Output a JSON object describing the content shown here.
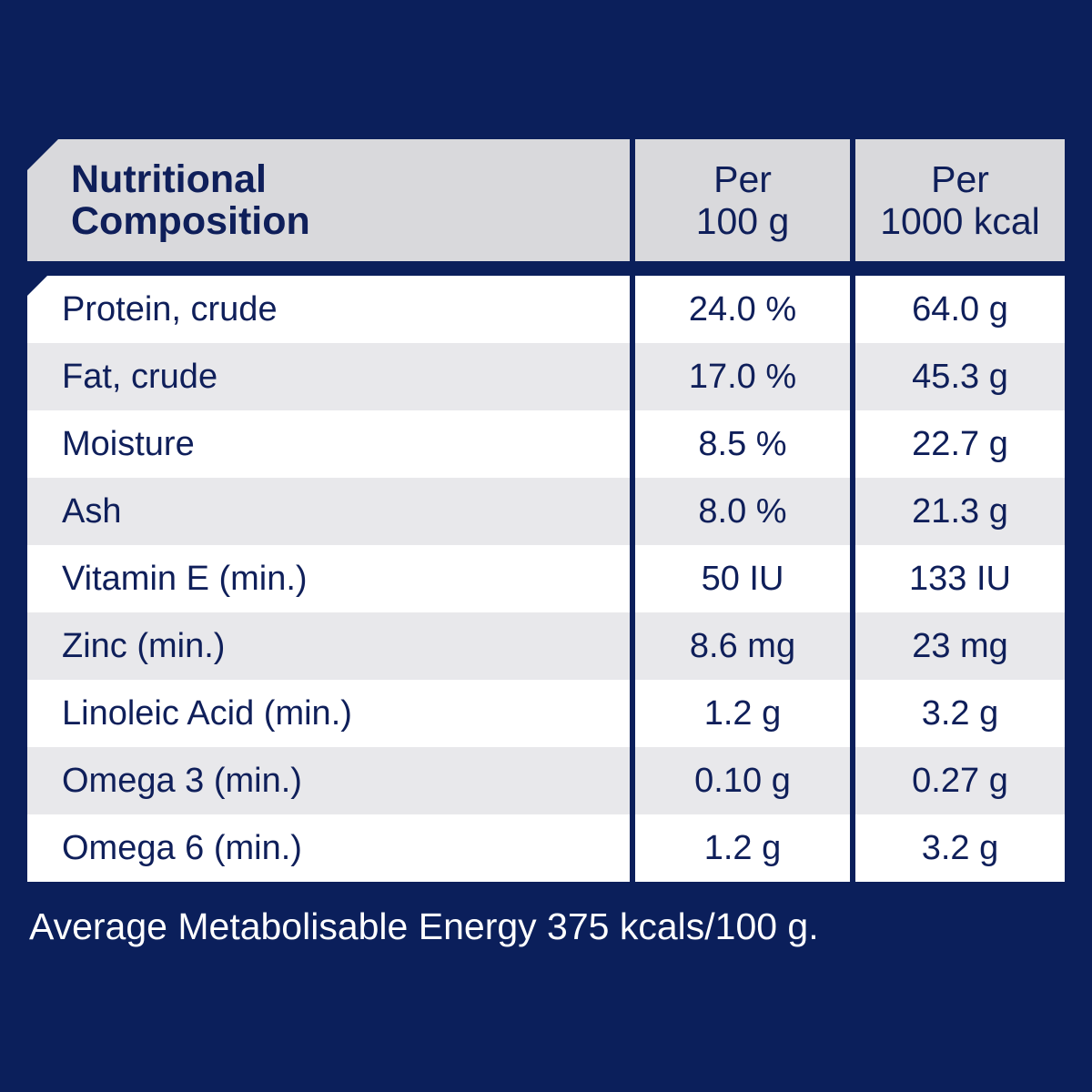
{
  "header": {
    "col0": [
      "Nutritional",
      "Composition"
    ],
    "col1": [
      "Per",
      "100 g"
    ],
    "col2": [
      "Per",
      "1000 kcal"
    ]
  },
  "rows": [
    [
      "Protein, crude",
      "24.0 %",
      "64.0 g"
    ],
    [
      "Fat, crude",
      "17.0 %",
      "45.3 g"
    ],
    [
      "Moisture",
      "8.5 %",
      "22.7 g"
    ],
    [
      "Ash",
      "8.0 %",
      "21.3 g"
    ],
    [
      "Vitamin E (min.)",
      "50 IU",
      "133 IU"
    ],
    [
      "Zinc (min.)",
      "8.6 mg",
      "23 mg"
    ],
    [
      "Linoleic Acid (min.)",
      "1.2 g",
      "3.2 g"
    ],
    [
      "Omega 3 (min.)",
      "0.10 g",
      "0.27 g"
    ],
    [
      "Omega 6 (min.)",
      "1.2 g",
      "3.2 g"
    ]
  ],
  "footer": "Average Metabolisable Energy 375 kcals/100 g.",
  "colors": {
    "background": "#0b1f5b",
    "header": "#d9d9dc",
    "row_alt": "#e8e8eb",
    "text": "#0f1f5a"
  }
}
